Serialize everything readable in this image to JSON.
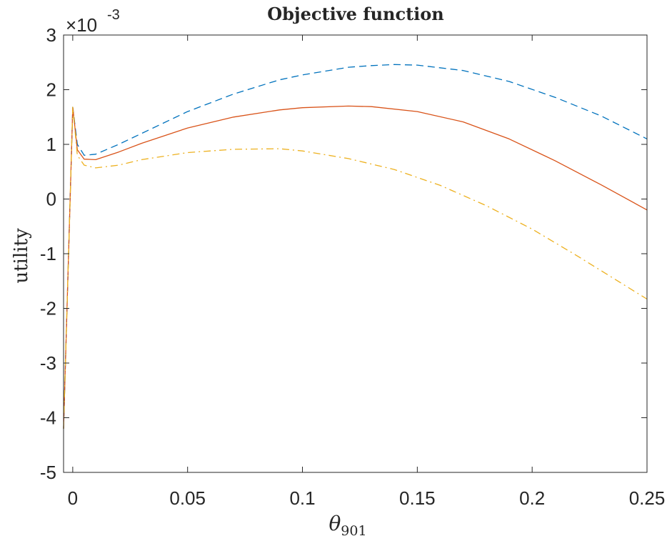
{
  "chart_data": {
    "type": "line",
    "title": "Objective function",
    "xlabel": "θ",
    "xlabel_subscript": "901",
    "ylabel": "utility",
    "y_exponent_base": "×10",
    "y_exponent_power": "-3",
    "xlim": [
      -0.004,
      0.25
    ],
    "ylim": [
      -5,
      3
    ],
    "x_ticks": [
      0,
      0.05,
      0.1,
      0.15,
      0.2,
      0.25
    ],
    "x_tick_labels": [
      "0",
      "0.05",
      "0.1",
      "0.15",
      "0.2",
      "0.25"
    ],
    "y_ticks": [
      -5,
      -4,
      -3,
      -2,
      -1,
      0,
      1,
      2,
      3
    ],
    "y_tick_labels": [
      "-5",
      "-4",
      "-3",
      "-2",
      "-1",
      "0",
      "1",
      "2",
      "3"
    ],
    "grid": false,
    "legend": "none",
    "series": [
      {
        "color": "#0072BD",
        "dash": "dashed",
        "x": [
          -0.004,
          0,
          0.002,
          0.005,
          0.01,
          0.02,
          0.03,
          0.05,
          0.07,
          0.09,
          0.1,
          0.12,
          0.13,
          0.14,
          0.15,
          0.17,
          0.19,
          0.21,
          0.23,
          0.25
        ],
        "y": [
          -4.2,
          1.68,
          1.0,
          0.8,
          0.82,
          1.0,
          1.2,
          1.6,
          1.92,
          2.18,
          2.27,
          2.41,
          2.44,
          2.46,
          2.45,
          2.35,
          2.15,
          1.86,
          1.52,
          1.1
        ]
      },
      {
        "color": "#D95319",
        "dash": "solid",
        "x": [
          -0.004,
          0,
          0.002,
          0.005,
          0.01,
          0.02,
          0.03,
          0.05,
          0.07,
          0.09,
          0.1,
          0.12,
          0.13,
          0.15,
          0.17,
          0.19,
          0.21,
          0.23,
          0.25
        ],
        "y": [
          -4.2,
          1.68,
          0.9,
          0.73,
          0.72,
          0.86,
          1.02,
          1.3,
          1.5,
          1.63,
          1.67,
          1.7,
          1.69,
          1.6,
          1.41,
          1.1,
          0.7,
          0.26,
          -0.2
        ]
      },
      {
        "color": "#EDB120",
        "dash": "dashdot",
        "x": [
          -0.004,
          0,
          0.002,
          0.005,
          0.01,
          0.02,
          0.03,
          0.05,
          0.07,
          0.09,
          0.1,
          0.12,
          0.14,
          0.16,
          0.18,
          0.2,
          0.22,
          0.25
        ],
        "y": [
          -4.2,
          1.68,
          0.8,
          0.62,
          0.57,
          0.62,
          0.72,
          0.85,
          0.91,
          0.92,
          0.88,
          0.74,
          0.54,
          0.25,
          -0.12,
          -0.55,
          -1.05,
          -1.83
        ]
      }
    ]
  }
}
